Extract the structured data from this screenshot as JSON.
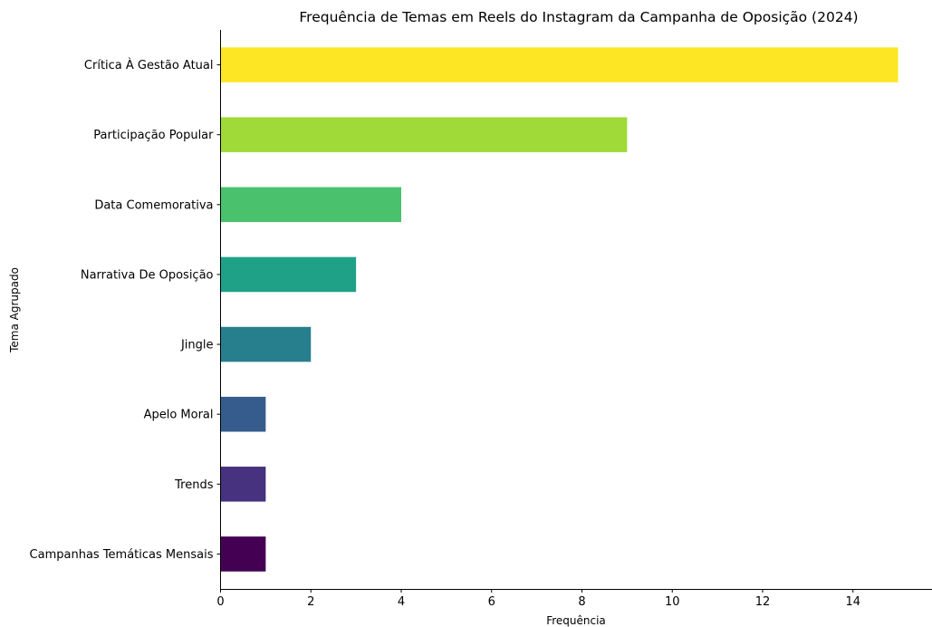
{
  "chart_data": {
    "type": "bar",
    "orientation": "horizontal",
    "title": "Frequência de Temas em Reels do Instagram da Campanha de Oposição (2024)",
    "xlabel": "Frequência",
    "ylabel": "Tema Agrupado",
    "categories": [
      "Crítica À Gestão Atual",
      "Participação Popular",
      "Data Comemorativa",
      "Narrativa De Oposição",
      "Jingle",
      "Apelo Moral",
      "Trends",
      "Campanhas Temáticas Mensais"
    ],
    "values": [
      15,
      9,
      4,
      3,
      2,
      1,
      1,
      1
    ],
    "colors": [
      "#fde725",
      "#a0da39",
      "#4ac16d",
      "#1fa187",
      "#277f8e",
      "#365c8d",
      "#46327e",
      "#440154"
    ],
    "xlim": [
      0,
      15.75
    ],
    "xticks": [
      0,
      2,
      4,
      6,
      8,
      10,
      12,
      14
    ],
    "grid": false,
    "legend": "none"
  }
}
